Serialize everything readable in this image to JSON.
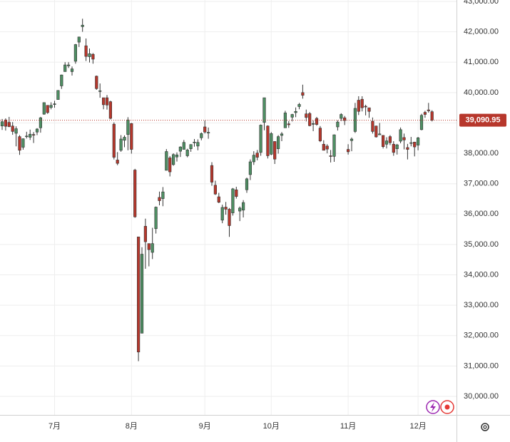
{
  "chart_data": {
    "type": "candlestick",
    "categories": [
      null,
      null,
      null,
      null,
      null,
      null,
      null,
      null,
      null,
      null,
      null,
      null,
      null,
      null,
      null,
      "7月",
      null,
      null,
      null,
      null,
      null,
      null,
      null,
      null,
      null,
      null,
      null,
      null,
      null,
      null,
      null,
      null,
      null,
      null,
      null,
      null,
      null,
      "8月",
      null,
      null,
      null,
      null,
      null,
      null,
      null,
      null,
      null,
      null,
      null,
      null,
      null,
      null,
      null,
      null,
      null,
      null,
      null,
      null,
      "9月",
      null,
      null,
      null,
      null,
      null,
      null,
      null,
      null,
      null,
      null,
      null,
      null,
      null,
      null,
      null,
      null,
      null,
      null,
      "10月",
      null,
      null,
      null,
      null,
      null,
      null,
      null,
      null,
      null,
      null,
      null,
      null,
      null,
      null,
      null,
      null,
      null,
      null,
      null,
      null,
      null,
      "11月",
      null,
      null,
      null,
      null,
      null,
      null,
      null,
      null,
      null,
      null,
      null,
      null,
      null,
      null,
      null,
      null,
      null,
      null,
      null,
      "12月",
      null,
      null,
      null,
      null
    ],
    "open": [
      38900,
      39100,
      39020,
      38900,
      38660,
      38550,
      38200,
      38550,
      38530,
      38620,
      38700,
      38840,
      39290,
      39580,
      39510,
      39610,
      39770,
      40220,
      40690,
      40880,
      40690,
      41030,
      41660,
      42170,
      41540,
      41180,
      41260,
      40540,
      40040,
      39830,
      39830,
      39700,
      38960,
      37780,
      38100,
      38430,
      38620,
      38980,
      37450,
      35250,
      32080,
      35600,
      35030,
      34740,
      35520,
      36550,
      36510,
      37440,
      37850,
      37630,
      37880,
      38070,
      38130,
      37920,
      38150,
      38370,
      38240,
      38510,
      38870,
      38680,
      37600,
      36950,
      36570,
      35800,
      36230,
      36160,
      36040,
      36800,
      36100,
      36130,
      36800,
      37300,
      37720,
      38010,
      38030,
      39020,
      38900,
      37970,
      38390,
      38150,
      38590,
      38840,
      38970,
      39190,
      39340,
      39540,
      40000,
      39300,
      39310,
      38960,
      39150,
      38830,
      38300,
      38240,
      37920,
      37900,
      38870,
      39150,
      39170,
      38130,
      38420,
      38720,
      39750,
      39780,
      39550,
      39500,
      39060,
      38900,
      38610,
      38590,
      38300,
      38550,
      38300,
      38150,
      38400,
      38520,
      38190,
      38350,
      38370,
      38270,
      38780,
      39350,
      39430,
      39370
    ],
    "high": [
      39130,
      39150,
      39200,
      39030,
      38890,
      38600,
      38490,
      38710,
      38780,
      38700,
      38830,
      39200,
      39680,
      39580,
      39680,
      39730,
      40080,
      40590,
      41000,
      41000,
      40860,
      41600,
      41840,
      42430,
      41780,
      41450,
      41300,
      40560,
      40300,
      39830,
      39920,
      39730,
      39020,
      38040,
      38600,
      38590,
      39190,
      39000,
      37490,
      35250,
      34910,
      35850,
      35030,
      35550,
      36250,
      36740,
      36890,
      38140,
      37910,
      38000,
      38030,
      38230,
      38440,
      38150,
      38300,
      38470,
      38460,
      38690,
      39080,
      38850,
      37710,
      37100,
      36700,
      36310,
      36400,
      36200,
      36860,
      36900,
      36250,
      36460,
      37200,
      37800,
      38070,
      38110,
      38950,
      39830,
      38920,
      38700,
      38400,
      38600,
      38700,
      39400,
      39060,
      39300,
      39510,
      39660,
      40260,
      39440,
      39360,
      39080,
      39200,
      38900,
      38430,
      38300,
      38110,
      38620,
      39090,
      39320,
      39230,
      38300,
      38520,
      39660,
      39880,
      39880,
      39600,
      39500,
      39180,
      38910,
      39000,
      38600,
      38530,
      38600,
      38400,
      38310,
      38850,
      38650,
      38310,
      38540,
      38380,
      38540,
      39300,
      39400,
      39660,
      39420
    ],
    "low": [
      38770,
      38750,
      38860,
      38610,
      38230,
      37950,
      38120,
      38490,
      38440,
      38340,
      38600,
      38680,
      39270,
      39300,
      39450,
      39500,
      39770,
      40120,
      40690,
      40810,
      40560,
      40950,
      41500,
      42000,
      41040,
      40990,
      40950,
      40090,
      39830,
      39450,
      39440,
      39120,
      37800,
      37610,
      38050,
      38200,
      38100,
      37990,
      35880,
      31160,
      32080,
      34200,
      34280,
      34520,
      35360,
      36290,
      36260,
      37440,
      37240,
      37590,
      37730,
      37880,
      38130,
      37870,
      38050,
      38220,
      38100,
      38430,
      38650,
      38480,
      36930,
      36630,
      36360,
      35700,
      35980,
      35250,
      35950,
      36510,
      35770,
      35890,
      36700,
      37120,
      37620,
      37770,
      37920,
      38760,
      37830,
      37940,
      37650,
      37990,
      38400,
      38840,
      38840,
      39050,
      39190,
      39450,
      39800,
      39050,
      38890,
      38730,
      38910,
      38370,
      38100,
      38000,
      37700,
      37720,
      38750,
      39060,
      38930,
      37960,
      38070,
      38670,
      39260,
      39380,
      39250,
      39170,
      38650,
      38520,
      38600,
      38160,
      38160,
      38270,
      37920,
      37960,
      38330,
      38130,
      37800,
      38230,
      37900,
      38100,
      38760,
      39170,
      39340,
      39050
    ],
    "close": [
      39040,
      38890,
      38880,
      38720,
      38810,
      38100,
      38480,
      38570,
      38630,
      38600,
      38800,
      39170,
      39670,
      39340,
      39580,
      39630,
      40070,
      40580,
      40910,
      40910,
      40780,
      41580,
      41830,
      42220,
      41190,
      41280,
      41100,
      40130,
      40060,
      39600,
      39590,
      39150,
      37870,
      37670,
      38470,
      38530,
      39100,
      38130,
      35910,
      31460,
      34680,
      35090,
      34830,
      35030,
      36230,
      36440,
      36730,
      38060,
      37390,
      37960,
      37950,
      38210,
      38360,
      38110,
      38290,
      38370,
      38360,
      38650,
      38700,
      38690,
      37050,
      36660,
      36390,
      36220,
      36160,
      35620,
      36830,
      36580,
      36200,
      36380,
      37160,
      37720,
      37940,
      37870,
      38930,
      39830,
      37920,
      38650,
      37810,
      38550,
      38640,
      39330,
      38940,
      39280,
      39380,
      39610,
      39910,
      39180,
      38910,
      38980,
      38950,
      38410,
      38100,
      38140,
      37910,
      38610,
      39030,
      39280,
      39080,
      38050,
      38470,
      39480,
      39380,
      39500,
      39530,
      39380,
      38720,
      38540,
      38640,
      38220,
      38410,
      38350,
      38030,
      38280,
      38780,
      38440,
      38130,
      38350,
      38210,
      38510,
      39250,
      39280,
      39400,
      39090.95
    ],
    "up_color": "#4e8f63",
    "down_color": "#b7372c",
    "price_line": {
      "value": 39090.95,
      "label": "39,090.95"
    },
    "ylim": [
      29390,
      43047
    ],
    "yticks": [
      {
        "value": 30000,
        "label": "30,000.00"
      },
      {
        "value": 31000,
        "label": "31,000.00"
      },
      {
        "value": 32000,
        "label": "32,000.00"
      },
      {
        "value": 33000,
        "label": "33,000.00"
      },
      {
        "value": 34000,
        "label": "34,000.00"
      },
      {
        "value": 35000,
        "label": "35,000.00"
      },
      {
        "value": 36000,
        "label": "36,000.00"
      },
      {
        "value": 37000,
        "label": "37,000.00"
      },
      {
        "value": 38000,
        "label": "38,000.00"
      },
      {
        "value": 39000,
        "label": "39,000.00"
      },
      {
        "value": 40000,
        "label": "40,000.00"
      },
      {
        "value": 41000,
        "label": "41,000.00"
      },
      {
        "value": 42000,
        "label": "42,000.00"
      },
      {
        "value": 43000,
        "label": "43,000.00"
      }
    ],
    "grid": true
  }
}
